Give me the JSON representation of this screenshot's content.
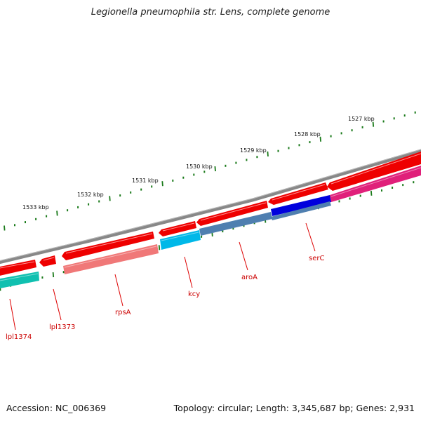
{
  "title": "Legionella pneumophila str. Lens, complete genome",
  "footer": {
    "accession": "Accession: NC_006369",
    "topology": "Topology: circular; Length: 3,345,687 bp; Genes: 2,931"
  },
  "ruler_labels": [
    "1527 kbp",
    "1528 kbp",
    "1529 kbp",
    "1530 kbp",
    "1531 kbp",
    "1532 kbp",
    "1533 kbp"
  ],
  "gene_labels": [
    "serC",
    "aroA",
    "kcy",
    "rpsA",
    "lpl1373",
    "lpl1374"
  ],
  "colors": {
    "backbone": "#7a7a7a",
    "cds": "#ee0000",
    "ticks": "#1a7a1a",
    "cog_pink": "#e0207a",
    "cog_blue": "#0000dd",
    "cog_steel": "#4f7fb0",
    "cog_cyan": "#00b8e8",
    "cog_salmon": "#f07878",
    "cog_teal": "#10c0b0",
    "label": "#cc0000"
  }
}
